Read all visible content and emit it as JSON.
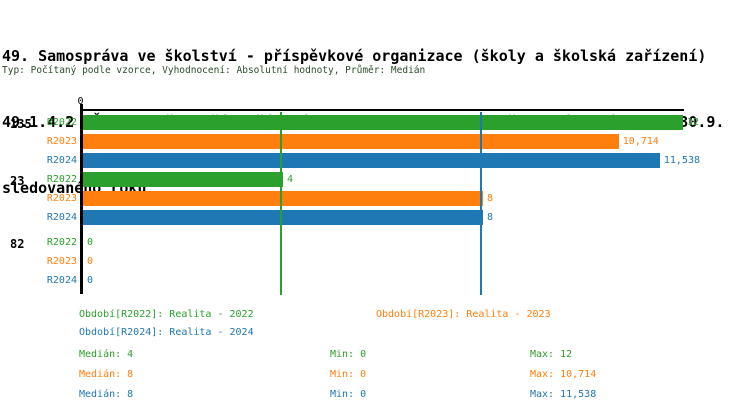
{
  "header": {
    "title_lines": [
      "49. Samospráva ve školství - příspěvkové organizace (školy a školská zařízení)",
      "49.1.4.2 MŠ - % počet tříd zřízených podle § 16 odst. 9 školského zákona k 30.9.",
      "sledovaného roku"
    ],
    "subtitle": "Typ: Počítaný podle vzorce, Vyhodnocení: Absolutní hodnoty, Průměr: Medián"
  },
  "colors": {
    "green": "#2ca02c",
    "orange": "#ff7f0e",
    "blue": "#1f77b4",
    "axis": "#000000",
    "subtitle_text": "#2d4d2d"
  },
  "chart_data": {
    "type": "bar",
    "orientation": "horizontal-grouped",
    "title": "49.1.4.2 MŠ - % počet tříd zřízených podle § 16 odst. 9 školského zákona k 30.9. sledovaného roku",
    "value_axis": {
      "origin_tick_label": "0",
      "min": 0,
      "implied_max": 12.08,
      "gridlines": false
    },
    "groups": [
      {
        "label": "135",
        "bars": [
          {
            "period": "R2022",
            "series": "green",
            "value": 12,
            "value_label": "12"
          },
          {
            "period": "R2023",
            "series": "orange",
            "value": 10.714,
            "value_label": "10,714"
          },
          {
            "period": "R2024",
            "series": "blue",
            "value": 11.538,
            "value_label": "11,538"
          }
        ]
      },
      {
        "label": "23",
        "bars": [
          {
            "period": "R2022",
            "series": "green",
            "value": 4,
            "value_label": "4"
          },
          {
            "period": "R2023",
            "series": "orange",
            "value": 8,
            "value_label": "8"
          },
          {
            "period": "R2024",
            "series": "blue",
            "value": 8,
            "value_label": "8"
          }
        ]
      },
      {
        "label": "82",
        "bars": [
          {
            "period": "R2022",
            "series": "green",
            "value": 0,
            "value_label": "0"
          },
          {
            "period": "R2023",
            "series": "orange",
            "value": 0,
            "value_label": "0"
          },
          {
            "period": "R2024",
            "series": "blue",
            "value": 0,
            "value_label": "0"
          }
        ]
      }
    ],
    "median_lines": [
      {
        "series": "green",
        "value": 4
      },
      {
        "series": "orange",
        "value": 8
      },
      {
        "series": "blue",
        "value": 8
      }
    ],
    "legend_position": "bottom"
  },
  "legend": {
    "items": [
      {
        "text": "Období[R2022]: Realita - 2022",
        "series": "green"
      },
      {
        "text": "Období[R2023]: Realita - 2023",
        "series": "orange"
      },
      {
        "text": "Období[R2024]: Realita - 2024",
        "series": "blue"
      }
    ]
  },
  "stats": {
    "rows": [
      {
        "series": "green",
        "median": "Medián: 4",
        "min": "Min: 0",
        "max": "Max: 12"
      },
      {
        "series": "orange",
        "median": "Medián: 8",
        "min": "Min: 0",
        "max": "Max: 10,714"
      },
      {
        "series": "blue",
        "median": "Medián: 8",
        "min": "Min: 0",
        "max": "Max: 11,538"
      }
    ]
  }
}
